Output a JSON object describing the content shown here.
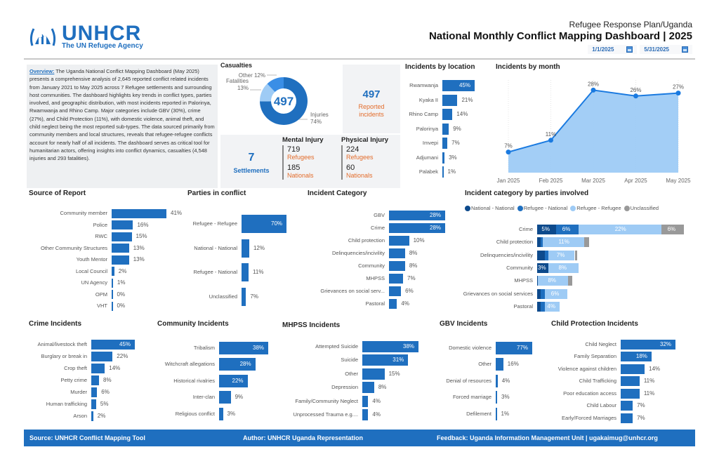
{
  "header": {
    "org_name": "UNHCR",
    "org_tagline": "The UN Refugee Agency",
    "subtitle": "Refugee Response Plan/Uganda",
    "title": "National Monthly Conflict Mapping Dashboard | 2025",
    "start_date": "1/1/2025",
    "end_date": "5/31/2025"
  },
  "overview": {
    "label": "Overview:",
    "text": " The Uganda National Conflict Mapping Dashboard (May 2025) presents a comprehensive analysis of 2,645 reported conflict related incidents from January 2021 to May 2025 across 7 Refugee settlements and surrounding host communities. The dashboard highlights key trends in conflict types, parties involved, and geographic distribution, with most incidents reported in Palorinya, Rwamwanja and Rhino Camp. Major categories include GBV (30%), crime (27%), and Child Protection (11%), with domestic violence, animal theft, and child neglect being the most reported sub-types. The data sourced primarily from community members and local structures, reveals that refugee-refugee conflicts account for nearly half of all incidents. The dashboard serves as critical tool for humanitarian actors, offering insights into conflict dynamics, casualties (4,548 injuries and 293 fatalities)."
  },
  "kpis": {
    "reported_incidents": "497",
    "reported_label": "Reported incidents",
    "settlements": "7",
    "settlements_label": "Settlements",
    "mental_injury": {
      "title": "Mental Injury",
      "refugees": "719",
      "refugees_label": "Refugees",
      "nationals": "185",
      "nationals_label": "Nationals"
    },
    "physical_injury": {
      "title": "Physical Injury",
      "refugees": "224",
      "refugees_label": "Refugees",
      "nationals": "60",
      "nationals_label": "Nationals"
    }
  },
  "colors": {
    "primary": "#1f6fbf",
    "dark": "#0d4a8c",
    "light": "#9ecbf5",
    "grey": "#999999",
    "accent": "#e36c2b"
  },
  "chart_data": [
    {
      "id": "casualties",
      "type": "pie",
      "title": "Casualties",
      "center_label": "497",
      "categories": [
        "Injuries",
        "Fatalities",
        "Other"
      ],
      "values": [
        74,
        13,
        12
      ],
      "labels": [
        "Injuries 74%",
        "Fatalities 13%",
        "Other 12%"
      ]
    },
    {
      "id": "location",
      "type": "bar",
      "title": "Incidents by location",
      "categories": [
        "Rwamwanja",
        "Kyaka II",
        "Rhino Camp",
        "Palorinya",
        "Imvepi",
        "Adjumani",
        "Palabek"
      ],
      "values": [
        45,
        21,
        14,
        9,
        7,
        3,
        1
      ],
      "labels": [
        "45%",
        "21%",
        "14%",
        "9%",
        "7%",
        "3%",
        "1%"
      ]
    },
    {
      "id": "month",
      "type": "area",
      "title": "Incidents by month",
      "categories": [
        "Jan 2025",
        "Feb 2025",
        "Mar 2025",
        "Apr 2025",
        "May 2025"
      ],
      "values": [
        7,
        11,
        28,
        26,
        27
      ],
      "labels": [
        "7%",
        "11%",
        "28%",
        "26%",
        "27%"
      ],
      "ylim": [
        0,
        30
      ]
    },
    {
      "id": "source",
      "type": "bar",
      "title": "Source of Report",
      "categories": [
        "Community member",
        "Police",
        "RWC",
        "Other Community Structures",
        "Youth Mentor",
        "Local Council",
        "UN Agency",
        "OPM",
        "VHT"
      ],
      "values": [
        41,
        16,
        15,
        13,
        13,
        2,
        1,
        0,
        0
      ],
      "labels": [
        "41%",
        "16%",
        "15%",
        "13%",
        "13%",
        "2%",
        "1%",
        "0%",
        "0%"
      ]
    },
    {
      "id": "parties",
      "type": "bar",
      "title": "Parties in conflict",
      "categories": [
        "Refugee - Refugee",
        "National - National",
        "Refugee - National",
        "Unclassified"
      ],
      "values": [
        70,
        12,
        11,
        7
      ],
      "labels": [
        "70%",
        "12%",
        "11%",
        "7%"
      ]
    },
    {
      "id": "category",
      "type": "bar",
      "title": "Incident Category",
      "categories": [
        "GBV",
        "Crime",
        "Child protection",
        "Delinquencies/incivility",
        "Community",
        "MHPSS",
        "Grievances on social serv...",
        "Pastoral"
      ],
      "values": [
        28,
        28,
        10,
        8,
        8,
        7,
        6,
        4
      ],
      "labels": [
        "28%",
        "28%",
        "10%",
        "8%",
        "8%",
        "7%",
        "6%",
        "4%"
      ]
    },
    {
      "id": "category_by_parties",
      "type": "bar",
      "stacked": true,
      "title": "Incident category by parties involved",
      "legend_position": "top",
      "categories": [
        "Crime",
        "Child protection",
        "Delinquencies/incivility",
        "Community",
        "MHPSS",
        "Grievances on social services",
        "Pastoral"
      ],
      "series": [
        {
          "name": "National - National",
          "values": [
            5,
            1,
            2,
            3,
            0.2,
            1,
            1
          ],
          "labels": [
            "5%",
            "",
            "",
            "3%",
            "",
            "",
            ""
          ]
        },
        {
          "name": "Refugee - National",
          "values": [
            6,
            0.5,
            1,
            0,
            0,
            1,
            1
          ],
          "labels": [
            "6%",
            "",
            "",
            "",
            "",
            "",
            ""
          ]
        },
        {
          "name": "Refugee - Refugee",
          "values": [
            22,
            11,
            7,
            8,
            8,
            6,
            4
          ],
          "labels": [
            "22%",
            "11%",
            "7%",
            "8%",
            "8%",
            "6%",
            "4%"
          ]
        },
        {
          "name": "Unclassified",
          "values": [
            6,
            1.3,
            0.7,
            0,
            1.2,
            0,
            0
          ],
          "labels": [
            "6%",
            "",
            "",
            "",
            "",
            "",
            ""
          ]
        }
      ]
    },
    {
      "id": "crime",
      "type": "bar",
      "title": "Crime Incidents",
      "categories": [
        "Animal/livestock theft",
        "Burglary or break in",
        "Crop theft",
        "Petty crime",
        "Murder",
        "Human trafficking",
        "Arson"
      ],
      "values": [
        45,
        22,
        14,
        8,
        6,
        5,
        2
      ],
      "labels": [
        "45%",
        "22%",
        "14%",
        "8%",
        "6%",
        "5%",
        "2%"
      ]
    },
    {
      "id": "community",
      "type": "bar",
      "title": "Community Incidents",
      "categories": [
        "Tribalism",
        "Witchcraft allegations",
        "Historical rivalries",
        "Inter-clan",
        "Religious conflict"
      ],
      "values": [
        38,
        28,
        22,
        9,
        3
      ],
      "labels": [
        "38%",
        "28%",
        "22%",
        "9%",
        "3%"
      ]
    },
    {
      "id": "mhpss",
      "type": "bar",
      "title": "MHPSS Incidents",
      "categories": [
        "Attempted Suicide",
        "Suicide",
        "Other",
        "Depression",
        "Family/Community Neglect",
        "Unprocessed Trauma e.g...."
      ],
      "values": [
        38,
        31,
        15,
        8,
        4,
        4
      ],
      "labels": [
        "38%",
        "31%",
        "15%",
        "8%",
        "4%",
        "4%"
      ]
    },
    {
      "id": "gbv",
      "type": "bar",
      "title": "GBV Incidents",
      "categories": [
        "Domestic violence",
        "Other",
        "Denial of resources",
        "Forced marriage",
        "Defilement"
      ],
      "values": [
        77,
        16,
        4,
        3,
        1
      ],
      "labels": [
        "77%",
        "16%",
        "4%",
        "3%",
        "1%"
      ]
    },
    {
      "id": "child",
      "type": "bar",
      "title": "Child Protection Incidents",
      "categories": [
        "Child Neglect",
        "Family Separation",
        "Violence against children",
        "Child Trafficking",
        "Poor education access",
        "Child Labour",
        "Early/Forced Marriages"
      ],
      "values": [
        32,
        18,
        14,
        11,
        11,
        7,
        7
      ],
      "labels": [
        "32%",
        "18%",
        "14%",
        "11%",
        "11%",
        "7%",
        "7%"
      ]
    }
  ],
  "footer": {
    "source": "Source: UNHCR Conflict Mapping Tool",
    "author": "Author: UNHCR Uganda Representation",
    "feedback": "Feedback:  Uganda Information Management Unit | ugakaimug@unhcr.org"
  }
}
